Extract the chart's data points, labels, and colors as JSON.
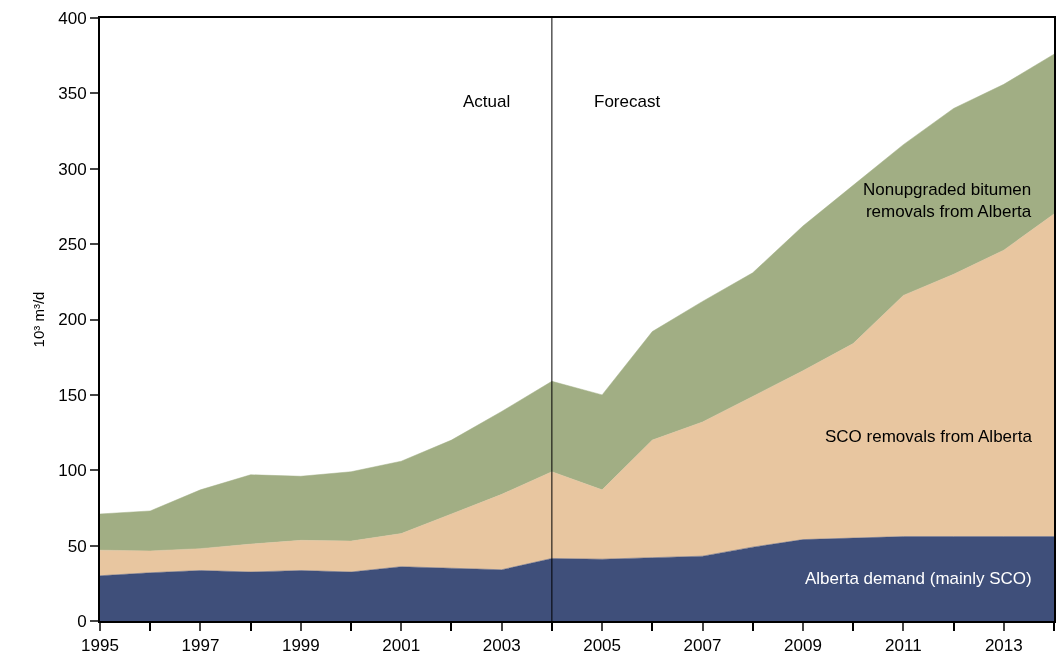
{
  "chart_data": {
    "type": "area",
    "stacked": true,
    "ylabel": "10³ m³/d",
    "x": [
      1995,
      1996,
      1997,
      1998,
      1999,
      2000,
      2001,
      2002,
      2003,
      2004,
      2005,
      2006,
      2007,
      2008,
      2009,
      2010,
      2011,
      2012,
      2013,
      2014
    ],
    "series": [
      {
        "name": "Alberta demand (mainly SCO)",
        "color": "#3f4f7a",
        "values": [
          30,
          32,
          33.5,
          32.5,
          33.5,
          32.5,
          36,
          35,
          34,
          41.5,
          41,
          42,
          43,
          49,
          54,
          55,
          56,
          56,
          56,
          56
        ]
      },
      {
        "name": "SCO removals from Alberta",
        "color": "#e8c6a0",
        "values": [
          17,
          14.5,
          14.5,
          18.5,
          20,
          20.5,
          22,
          36,
          50,
          57.5,
          46,
          78,
          89,
          100,
          112,
          129,
          160,
          174,
          190,
          214
        ]
      },
      {
        "name": "Nonupgraded bitumen removals from Alberta",
        "color": "#a1ae84",
        "values": [
          24,
          26.5,
          39,
          46,
          42.5,
          46,
          48,
          49,
          55,
          60,
          63,
          72,
          80,
          82,
          96,
          105,
          100,
          110,
          110,
          106
        ]
      }
    ],
    "xlim": [
      1995,
      2014
    ],
    "xticks": [
      1995,
      1997,
      1999,
      2001,
      2003,
      2005,
      2007,
      2009,
      2011,
      2013
    ],
    "ylim": [
      0,
      400
    ],
    "yticks": [
      0,
      50,
      100,
      150,
      200,
      250,
      300,
      350,
      400
    ],
    "ref_lines": [
      {
        "axis": "x",
        "value": 2004,
        "color": "#000000"
      }
    ],
    "annotations": [
      "Actual",
      "Forecast"
    ],
    "legend": false
  }
}
